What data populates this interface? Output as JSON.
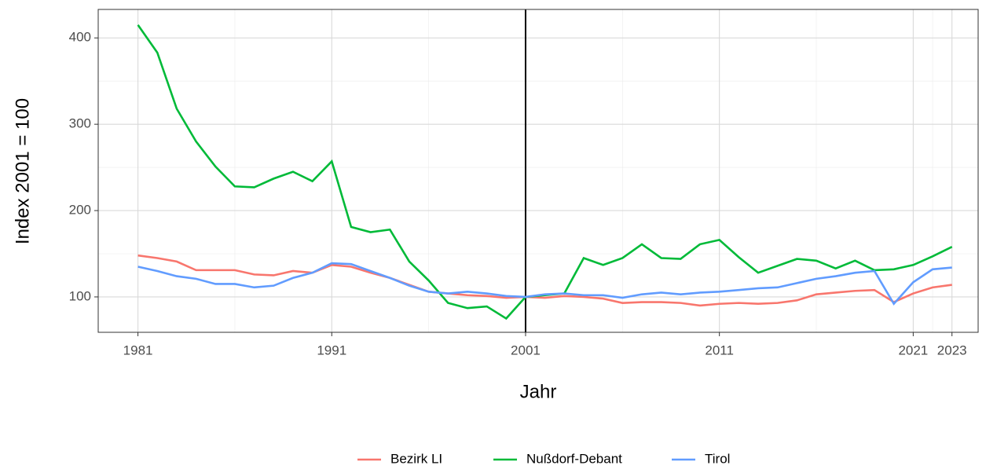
{
  "chart_data": {
    "type": "line",
    "x_label": "Jahr",
    "y_label": "Index 2001 = 100",
    "x": [
      1981,
      1982,
      1983,
      1984,
      1985,
      1986,
      1987,
      1988,
      1989,
      1990,
      1991,
      1992,
      1993,
      1994,
      1995,
      1996,
      1997,
      1998,
      1999,
      2000,
      2001,
      2002,
      2003,
      2004,
      2005,
      2006,
      2007,
      2008,
      2009,
      2010,
      2011,
      2012,
      2013,
      2014,
      2015,
      2016,
      2017,
      2018,
      2019,
      2020,
      2021,
      2022,
      2023
    ],
    "series": [
      {
        "name": "Bezirk LI",
        "color": "#F8766D",
        "values": [
          148,
          145,
          141,
          131,
          131,
          131,
          126,
          125,
          130,
          128,
          137,
          135,
          128,
          122,
          114,
          106,
          104,
          102,
          101,
          99,
          100,
          99,
          101,
          100,
          98,
          93,
          94,
          94,
          93,
          90,
          92,
          93,
          92,
          93,
          96,
          103,
          105,
          107,
          108,
          94,
          104,
          111,
          114
        ]
      },
      {
        "name": "Nußdorf-Debant",
        "color": "#00BA38",
        "values": [
          415,
          383,
          318,
          280,
          251,
          228,
          227,
          237,
          245,
          234,
          257,
          181,
          175,
          178,
          141,
          119,
          93,
          87,
          89,
          75,
          100,
          102,
          104,
          145,
          137,
          145,
          161,
          145,
          144,
          161,
          166,
          146,
          128,
          136,
          144,
          142,
          133,
          142,
          131,
          132,
          137,
          147,
          158
        ]
      },
      {
        "name": "Tirol",
        "color": "#619CFF",
        "values": [
          135,
          130,
          124,
          121,
          115,
          115,
          111,
          113,
          122,
          128,
          139,
          138,
          130,
          122,
          113,
          106,
          104,
          106,
          104,
          101,
          100,
          103,
          104,
          102,
          102,
          99,
          103,
          105,
          103,
          105,
          106,
          108,
          110,
          111,
          116,
          121,
          124,
          128,
          130,
          92,
          117,
          132,
          134
        ]
      }
    ],
    "xlim": [
      1978.95,
      2024.35
    ],
    "xticks": [
      1981,
      1991,
      2001,
      2011,
      2021,
      2023
    ],
    "xminor": [
      1986,
      1996,
      2006,
      2016,
      2022
    ],
    "ylim": [
      59,
      433
    ],
    "yticks": [
      100,
      200,
      300,
      400
    ],
    "yminor": [
      150,
      250,
      350
    ],
    "vline": 2001,
    "grid": true,
    "legend": "bottom"
  }
}
